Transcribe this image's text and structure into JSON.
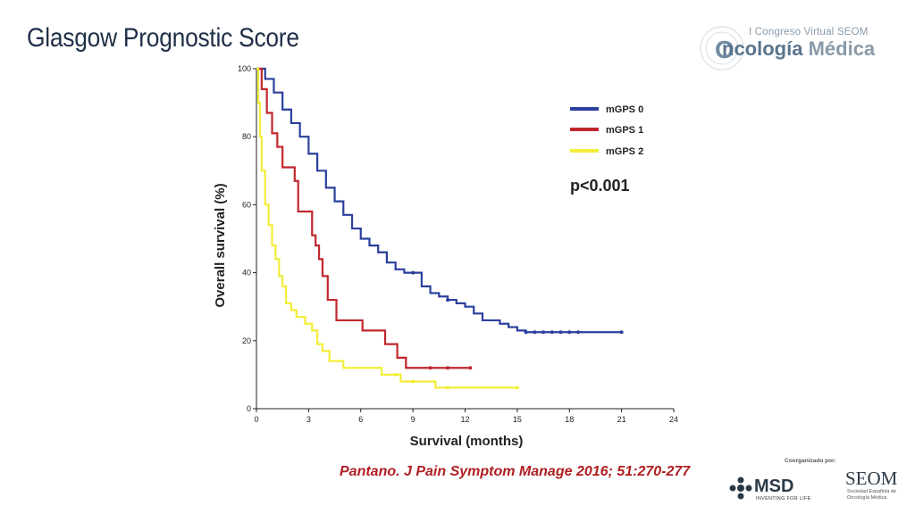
{
  "slide": {
    "title": "Glasgow Prognostic Score",
    "citation": "Pantano. J Pain Symptom Manage 2016; 51:270-277"
  },
  "branding": {
    "congress": "I Congreso Virtual SEOM",
    "oncologia_prefix": "ncología",
    "oncologia_suffix": "Médica",
    "coorganized_by": "Coorganizado por:",
    "msd_name": "MSD",
    "msd_tagline": "INVENTING FOR LIFE",
    "seom_name": "SEOM",
    "seom_sub": "Sociedad Española de Oncología Médica"
  },
  "chart_data": {
    "type": "line",
    "step": true,
    "xlabel": "Survival (months)",
    "ylabel": "Overall survival (%)",
    "xlim": [
      0,
      24
    ],
    "ylim": [
      0,
      100
    ],
    "xticks": [
      "0",
      "3",
      "6",
      "9",
      "12",
      "15",
      "18",
      "21",
      "24"
    ],
    "yticks": [
      "0",
      "20",
      "40",
      "60",
      "80",
      "100"
    ],
    "grid": false,
    "legend_position": "top-right",
    "annotation": "p<0.001",
    "series": [
      {
        "name": "mGPS 0",
        "color": "#2b3f9e",
        "points": [
          [
            0,
            100
          ],
          [
            0.5,
            97
          ],
          [
            1,
            93
          ],
          [
            1.5,
            88
          ],
          [
            2,
            84
          ],
          [
            2.5,
            80
          ],
          [
            3,
            75
          ],
          [
            3.5,
            70
          ],
          [
            4,
            65
          ],
          [
            4.5,
            61
          ],
          [
            5,
            57
          ],
          [
            5.5,
            53
          ],
          [
            6,
            50
          ],
          [
            6.5,
            48
          ],
          [
            7,
            46
          ],
          [
            7.5,
            43
          ],
          [
            8,
            41
          ],
          [
            8.5,
            40
          ],
          [
            9,
            40
          ],
          [
            9.5,
            36
          ],
          [
            10,
            34
          ],
          [
            10.5,
            33
          ],
          [
            11,
            32
          ],
          [
            11.5,
            31
          ],
          [
            12,
            30
          ],
          [
            12.5,
            28
          ],
          [
            13,
            26
          ],
          [
            13.5,
            26
          ],
          [
            14,
            25
          ],
          [
            14.5,
            24
          ],
          [
            15,
            23
          ],
          [
            15.5,
            22.5
          ],
          [
            21,
            22.5
          ]
        ],
        "censor_x": [
          9,
          11,
          15.5,
          16,
          16.5,
          17,
          17.5,
          18,
          18.5,
          21
        ]
      },
      {
        "name": "mGPS 1",
        "color": "#c0272d",
        "points": [
          [
            0,
            100
          ],
          [
            0.3,
            94
          ],
          [
            0.6,
            87
          ],
          [
            0.9,
            81
          ],
          [
            1.2,
            77
          ],
          [
            1.5,
            71
          ],
          [
            2,
            71
          ],
          [
            2.2,
            67
          ],
          [
            2.4,
            58
          ],
          [
            3,
            58
          ],
          [
            3.2,
            51
          ],
          [
            3.4,
            48
          ],
          [
            3.6,
            44
          ],
          [
            3.8,
            39
          ],
          [
            4,
            39
          ],
          [
            4.1,
            32
          ],
          [
            4.5,
            32
          ],
          [
            4.6,
            26
          ],
          [
            6,
            26
          ],
          [
            6.1,
            23
          ],
          [
            7.3,
            23
          ],
          [
            7.4,
            19
          ],
          [
            8,
            19
          ],
          [
            8.1,
            15
          ],
          [
            8.5,
            15
          ],
          [
            8.6,
            12
          ],
          [
            12.3,
            12
          ]
        ],
        "censor_x": [
          10,
          11,
          12.3
        ]
      },
      {
        "name": "mGPS 2",
        "color": "#f2ee3a",
        "points": [
          [
            0,
            100
          ],
          [
            0.1,
            90
          ],
          [
            0.2,
            80
          ],
          [
            0.3,
            70
          ],
          [
            0.5,
            60
          ],
          [
            0.7,
            54
          ],
          [
            0.9,
            48
          ],
          [
            1.1,
            44
          ],
          [
            1.3,
            39
          ],
          [
            1.5,
            36
          ],
          [
            1.7,
            31
          ],
          [
            2,
            29
          ],
          [
            2.3,
            27
          ],
          [
            2.8,
            25
          ],
          [
            3.2,
            23
          ],
          [
            3.5,
            19
          ],
          [
            3.8,
            17
          ],
          [
            4.2,
            14
          ],
          [
            5,
            12
          ],
          [
            7,
            12
          ],
          [
            7.2,
            10
          ],
          [
            8.2,
            10
          ],
          [
            8.3,
            8
          ],
          [
            10.2,
            8
          ],
          [
            10.3,
            6.2
          ],
          [
            15,
            6.2
          ]
        ],
        "censor_x": [
          8,
          9,
          11,
          15
        ]
      }
    ]
  }
}
